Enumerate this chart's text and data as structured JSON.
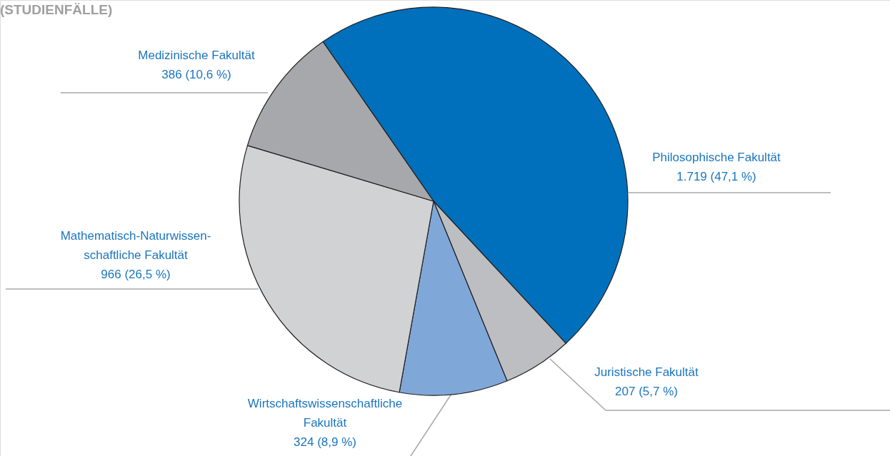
{
  "chart_data": {
    "type": "pie",
    "title": "(STUDIENFÄLLE)",
    "categories": [
      "Philosophische Fakultät",
      "Juristische Fakultät",
      "Wirtschaftswissenschaftliche\nFakultät",
      "Mathematisch-Naturwissen-\nschaftliche Fakultät",
      "Medizinische Fakultät"
    ],
    "values": [
      1719,
      207,
      324,
      966,
      386
    ],
    "value_labels": [
      "1.719 (47,1 %)",
      "207 (5,7 %)",
      "324 (8,9 %)",
      "966 (26,5 %)",
      "386 (10,6 %)"
    ],
    "colors": [
      "#0070bc",
      "#bdbec2",
      "#7fa8d9",
      "#d1d2d4",
      "#a7a8ab"
    ]
  }
}
